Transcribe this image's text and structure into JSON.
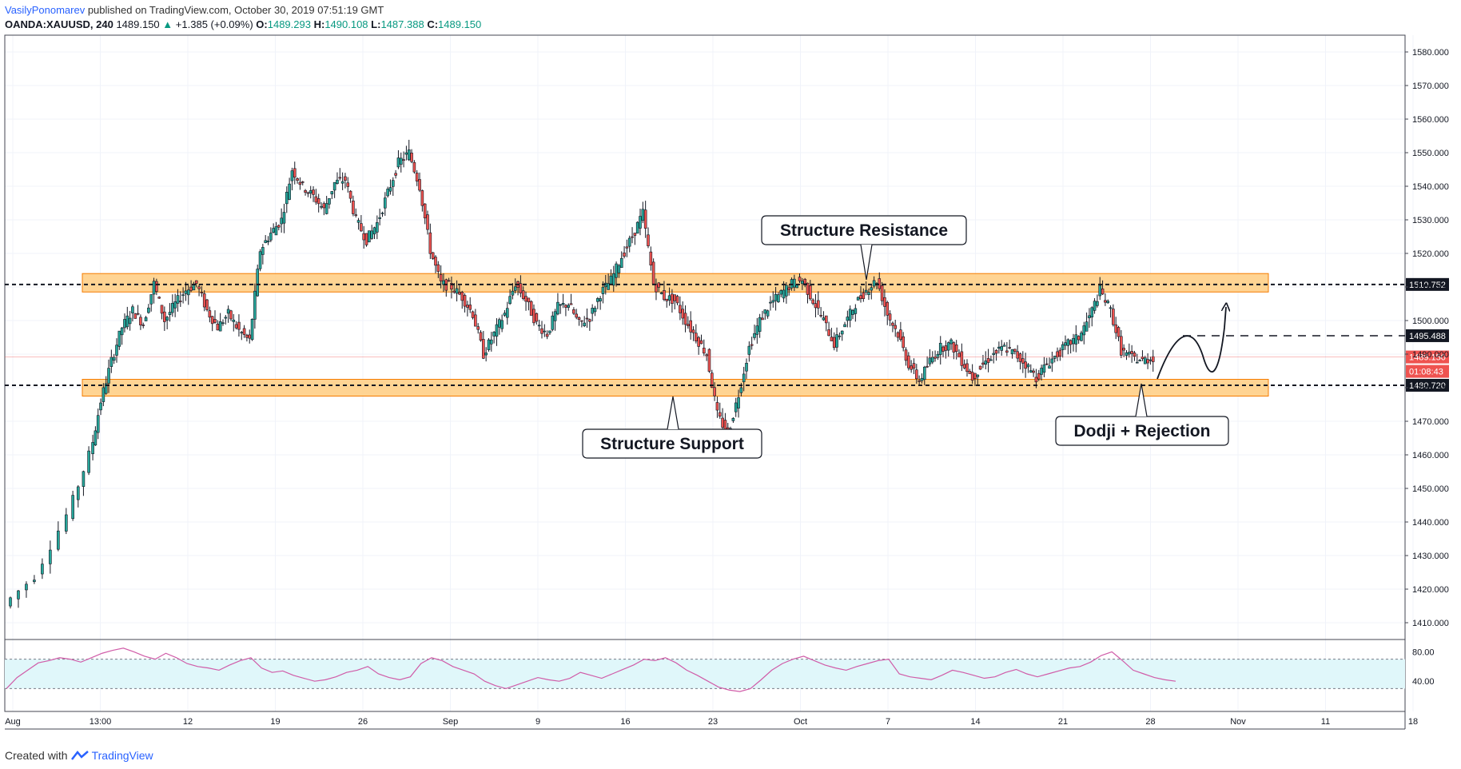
{
  "header": {
    "author": "VasilyPonomarev",
    "published": " published on TradingView.com, October 30, 2019 07:51:19 GMT",
    "symbol": "OANDA:XAUUSD, 240",
    "last": "1489.150",
    "change_arrow": "▲",
    "change": "+1.385 (+0.09%)",
    "o_label": "O:",
    "o_value": "1489.293",
    "h_label": "H:",
    "h_value": "1490.108",
    "l_label": "L:",
    "l_value": "1487.388",
    "c_label": "C:",
    "c_value": "1489.150"
  },
  "chart_data": [
    {
      "type": "candlestick",
      "symbol": "OANDA:XAUUSD",
      "timeframe": "240",
      "y_axis_ticks": [
        "1580.000",
        "1570.000",
        "1560.000",
        "1550.000",
        "1540.000",
        "1530.000",
        "1520.000",
        "1510.000",
        "1500.000",
        "1490.000",
        "1480.000",
        "1470.000",
        "1460.000",
        "1450.000",
        "1440.000",
        "1430.000",
        "1420.000",
        "1410.000"
      ],
      "y_axis_values": [
        1580,
        1570,
        1560,
        1550,
        1540,
        1530,
        1520,
        1510,
        1500,
        1490,
        1480,
        1470,
        1460,
        1450,
        1440,
        1430,
        1420,
        1410
      ],
      "ylim": [
        1405,
        1585
      ],
      "x_axis_ticks": [
        "Aug",
        "13:00",
        "12",
        "19",
        "26",
        "Sep",
        "9",
        "16",
        "23",
        "Oct",
        "7",
        "14",
        "21",
        "28",
        "Nov",
        "11",
        "18"
      ],
      "price_path": [
        [
          0,
          1415
        ],
        [
          3,
          1424
        ],
        [
          6,
          1442
        ],
        [
          8,
          1460
        ],
        [
          9,
          1476
        ],
        [
          10,
          1488
        ],
        [
          11,
          1498
        ],
        [
          12,
          1503
        ],
        [
          13,
          1499
        ],
        [
          14,
          1511
        ],
        [
          15,
          1500
        ],
        [
          16,
          1505
        ],
        [
          17,
          1509
        ],
        [
          18,
          1511
        ],
        [
          19,
          1503
        ],
        [
          20,
          1498
        ],
        [
          21,
          1502
        ],
        [
          22,
          1497
        ],
        [
          23,
          1494
        ],
        [
          24,
          1521
        ],
        [
          25,
          1526
        ],
        [
          26,
          1530
        ],
        [
          27,
          1545
        ],
        [
          28,
          1540
        ],
        [
          29,
          1537
        ],
        [
          30,
          1533
        ],
        [
          31,
          1541
        ],
        [
          32,
          1542
        ],
        [
          33,
          1530
        ],
        [
          34,
          1524
        ],
        [
          35,
          1529
        ],
        [
          36,
          1538
        ],
        [
          37,
          1547
        ],
        [
          38,
          1550
        ],
        [
          39,
          1540
        ],
        [
          40,
          1521
        ],
        [
          41,
          1511
        ],
        [
          42,
          1510
        ],
        [
          43,
          1507
        ],
        [
          44,
          1502
        ],
        [
          45,
          1490
        ],
        [
          46,
          1496
        ],
        [
          47,
          1502
        ],
        [
          48,
          1511
        ],
        [
          49,
          1506
        ],
        [
          50,
          1499
        ],
        [
          51,
          1496
        ],
        [
          52,
          1504
        ],
        [
          53,
          1505
        ],
        [
          54,
          1499
        ],
        [
          55,
          1501
        ],
        [
          56,
          1508
        ],
        [
          57,
          1512
        ],
        [
          58,
          1519
        ],
        [
          59,
          1525
        ],
        [
          60,
          1532
        ],
        [
          61,
          1511
        ],
        [
          62,
          1507
        ],
        [
          63,
          1506
        ],
        [
          64,
          1500
        ],
        [
          65,
          1495
        ],
        [
          66,
          1490
        ],
        [
          67,
          1472
        ],
        [
          68,
          1466
        ],
        [
          69,
          1478
        ],
        [
          70,
          1492
        ],
        [
          71,
          1500
        ],
        [
          72,
          1505
        ],
        [
          73,
          1508
        ],
        [
          74,
          1511
        ],
        [
          75,
          1512
        ],
        [
          76,
          1506
        ],
        [
          77,
          1500
        ],
        [
          78,
          1493
        ],
        [
          79,
          1499
        ],
        [
          80,
          1505
        ],
        [
          81,
          1509
        ],
        [
          82,
          1512
        ],
        [
          83,
          1502
        ],
        [
          84,
          1496
        ],
        [
          85,
          1487
        ],
        [
          86,
          1482
        ],
        [
          87,
          1488
        ],
        [
          88,
          1492
        ],
        [
          89,
          1493
        ],
        [
          90,
          1488
        ],
        [
          91,
          1483
        ],
        [
          92,
          1487
        ],
        [
          93,
          1490
        ],
        [
          94,
          1492
        ],
        [
          95,
          1490
        ],
        [
          96,
          1487
        ],
        [
          97,
          1483
        ],
        [
          98,
          1487
        ],
        [
          99,
          1490
        ],
        [
          100,
          1493
        ],
        [
          101,
          1495
        ],
        [
          102,
          1501
        ],
        [
          103,
          1509
        ],
        [
          104,
          1503
        ],
        [
          105,
          1491
        ],
        [
          106,
          1489
        ],
        [
          107,
          1488
        ],
        [
          108,
          1489
        ]
      ],
      "price_path_x_units": "bar index (4h bars)",
      "levels": [
        {
          "name": "resistance",
          "price": 1510.752,
          "label": "1510.752"
        },
        {
          "name": "projection",
          "price": 1495.488,
          "label": "1495.488"
        },
        {
          "name": "last",
          "price": 1489.15,
          "label": "1489.150"
        },
        {
          "name": "countdown",
          "label": "01:08:43"
        },
        {
          "name": "support",
          "price": 1480.72,
          "label": "1480.720"
        }
      ],
      "zones": [
        {
          "name": "resistance-zone",
          "from": 1508.5,
          "to": 1514
        },
        {
          "name": "support-zone",
          "from": 1477.5,
          "to": 1482.5
        }
      ],
      "annotations": [
        "Structure Resistance",
        "Structure Support",
        "Dodji + Rejection"
      ],
      "colors": {
        "up": "#26a69a",
        "down": "#ef5350",
        "zone_fill": "#ffcc80",
        "zone_border": "#f57c00"
      }
    },
    {
      "type": "line",
      "name": "RSI",
      "y_axis_ticks": [
        "80.00",
        "40.00"
      ],
      "band": [
        30,
        70
      ],
      "x_units": "bar index",
      "values": [
        30,
        45,
        55,
        65,
        68,
        72,
        70,
        66,
        72,
        78,
        82,
        85,
        80,
        74,
        70,
        78,
        72,
        64,
        60,
        58,
        55,
        62,
        68,
        72,
        58,
        52,
        54,
        48,
        44,
        40,
        42,
        46,
        52,
        55,
        60,
        50,
        45,
        42,
        46,
        64,
        72,
        68,
        60,
        55,
        50,
        40,
        34,
        30,
        35,
        40,
        45,
        42,
        40,
        44,
        52,
        48,
        44,
        50,
        56,
        62,
        70,
        68,
        72,
        65,
        55,
        48,
        40,
        32,
        28,
        26,
        30,
        42,
        55,
        64,
        70,
        74,
        68,
        62,
        58,
        55,
        60,
        64,
        68,
        70,
        50,
        46,
        44,
        42,
        48,
        55,
        52,
        48,
        44,
        46,
        52,
        56,
        50,
        46,
        50,
        54,
        58,
        60,
        66,
        75,
        80,
        68,
        55,
        50,
        45,
        42,
        40
      ]
    }
  ],
  "footer": {
    "created_with": "Created with",
    "brand": "TradingView"
  }
}
